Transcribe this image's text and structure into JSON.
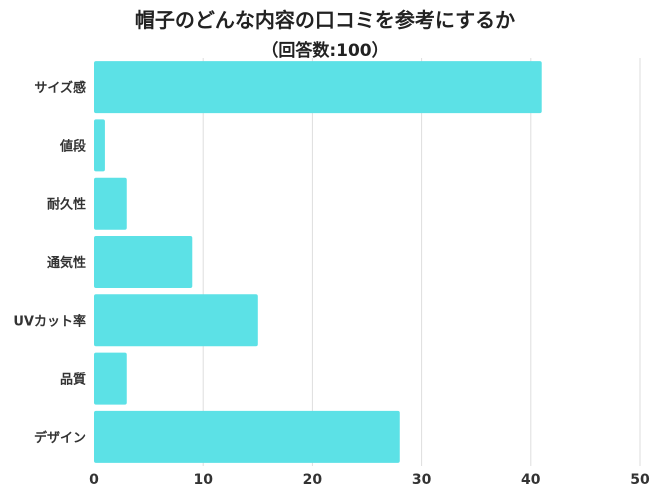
{
  "chart_data": {
    "type": "bar",
    "orientation": "horizontal",
    "title": "帽子のどんな内容の口コミを参考にするか",
    "subtitle": "（回答数:100）",
    "categories": [
      "サイズ感",
      "値段",
      "耐久性",
      "通気性",
      "UVカット率",
      "品質",
      "デザイン"
    ],
    "values": [
      41,
      1,
      3,
      9,
      15,
      3,
      28
    ],
    "xlim": [
      0,
      50
    ],
    "xticks": [
      0,
      10,
      20,
      30,
      40,
      50
    ],
    "grid": true,
    "legend": "none",
    "bar_color": "#5ce1e6"
  }
}
